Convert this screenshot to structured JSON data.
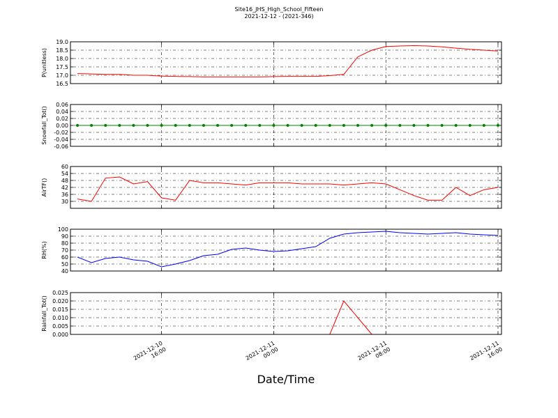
{
  "chart_data": {
    "type": "line",
    "title": "Site16_JHS_High_School_Fifteen",
    "subtitle": "2021-12-12 - (2021-346)",
    "xlabel": "Date/Time",
    "grid": true,
    "xlim": [
      "2021-12-10 09:30",
      "2021-12-11 16:15"
    ],
    "xticks": [
      "2021-12-10 16:00",
      "2021-12-11 00:00",
      "2021-12-11 08:00",
      "2021-12-11 16:00"
    ],
    "x": [
      "2021-12-10 10:00",
      "2021-12-10 11:00",
      "2021-12-10 12:00",
      "2021-12-10 13:00",
      "2021-12-10 14:00",
      "2021-12-10 15:00",
      "2021-12-10 16:00",
      "2021-12-10 17:00",
      "2021-12-10 18:00",
      "2021-12-10 19:00",
      "2021-12-10 20:00",
      "2021-12-10 21:00",
      "2021-12-10 22:00",
      "2021-12-10 23:00",
      "2021-12-11 00:00",
      "2021-12-11 01:00",
      "2021-12-11 02:00",
      "2021-12-11 03:00",
      "2021-12-11 04:00",
      "2021-12-11 05:00",
      "2021-12-11 06:00",
      "2021-12-11 07:00",
      "2021-12-11 08:00",
      "2021-12-11 09:00",
      "2021-12-11 10:00",
      "2021-12-11 11:00",
      "2021-12-11 12:00",
      "2021-12-11 13:00",
      "2021-12-11 14:00",
      "2021-12-11 15:00",
      "2021-12-11 16:00"
    ],
    "panels": [
      {
        "ylabel": "P(unitless)",
        "ylim": [
          16.5,
          19.0
        ],
        "yticks": [
          16.5,
          {
            "value": 17,
            "label": "17.0"
          },
          17.5,
          {
            "value": 18,
            "label": "18.0"
          },
          18.5,
          {
            "value": 19,
            "label": "19.0"
          }
        ],
        "series": [
          {
            "color": "#ff0000",
            "marker": false,
            "values": [
              17.1,
              17.08,
              17.05,
              17.05,
              17.0,
              17.0,
              16.95,
              16.93,
              16.92,
              16.9,
              16.9,
              16.9,
              16.9,
              16.9,
              16.92,
              16.93,
              16.93,
              16.93,
              16.98,
              17.05,
              18.1,
              18.5,
              18.72,
              18.75,
              18.77,
              18.75,
              18.7,
              18.62,
              18.55,
              18.5,
              18.45
            ]
          }
        ]
      },
      {
        "ylabel": "Snowfall_Tot()",
        "ylim": [
          -0.06,
          0.06
        ],
        "yticks": [
          -0.06,
          -0.04,
          -0.02,
          {
            "value": 0,
            "label": "0.00"
          },
          0.02,
          0.04,
          0.06
        ],
        "series": [
          {
            "color": "#008000",
            "marker": true,
            "values": [
              0,
              0,
              0,
              0,
              0,
              0,
              0,
              0,
              0,
              0,
              0,
              0,
              0,
              0,
              0,
              0,
              0,
              0,
              0,
              0,
              0,
              0,
              0,
              0,
              0,
              0,
              0,
              0,
              0,
              0,
              0
            ]
          }
        ]
      },
      {
        "ylabel": "AirTF()",
        "ylim": [
          24,
          60
        ],
        "yticks": [
          30,
          36,
          42,
          48,
          54,
          60
        ],
        "series": [
          {
            "color": "#ff0000",
            "marker": false,
            "values": [
              32,
              30,
              50,
              51,
              45,
              47,
              33,
              31,
              48,
              46,
              46,
              45,
              44,
              46,
              46,
              46,
              45,
              45,
              45,
              44,
              45,
              46,
              45,
              40,
              35,
              31,
              31,
              42,
              35,
              40,
              42
            ]
          }
        ]
      },
      {
        "ylabel": "RH(%)",
        "ylim": [
          40,
          100
        ],
        "yticks": [
          40,
          50,
          60,
          70,
          80,
          90,
          100
        ],
        "series": [
          {
            "color": "#0000ff",
            "marker": false,
            "values": [
              60,
              52,
              58,
              60,
              56,
              54,
              46,
              50,
              55,
              62,
              64,
              71,
              73,
              70,
              68,
              69,
              72,
              75,
              87,
              93,
              95,
              96,
              97,
              95,
              94,
              93,
              94,
              95,
              93,
              92,
              91
            ]
          }
        ]
      },
      {
        "ylabel": "Rainfall_Tot()",
        "ylim": [
          0,
          0.025
        ],
        "yticks": [
          {
            "value": 0,
            "label": "0.000"
          },
          0.005,
          {
            "value": 0.01,
            "label": "0.010"
          },
          0.015,
          {
            "value": 0.02,
            "label": "0.020"
          },
          0.025
        ],
        "series": [
          {
            "color": "#ff0000",
            "marker": false,
            "values": [
              0,
              0,
              0,
              0,
              0,
              0,
              0,
              0,
              0,
              0,
              0,
              0,
              0,
              0,
              0,
              0,
              0,
              0,
              0,
              0.02,
              0.01,
              0,
              0,
              0,
              0,
              0,
              0,
              0,
              0,
              0,
              0
            ]
          }
        ]
      }
    ]
  }
}
